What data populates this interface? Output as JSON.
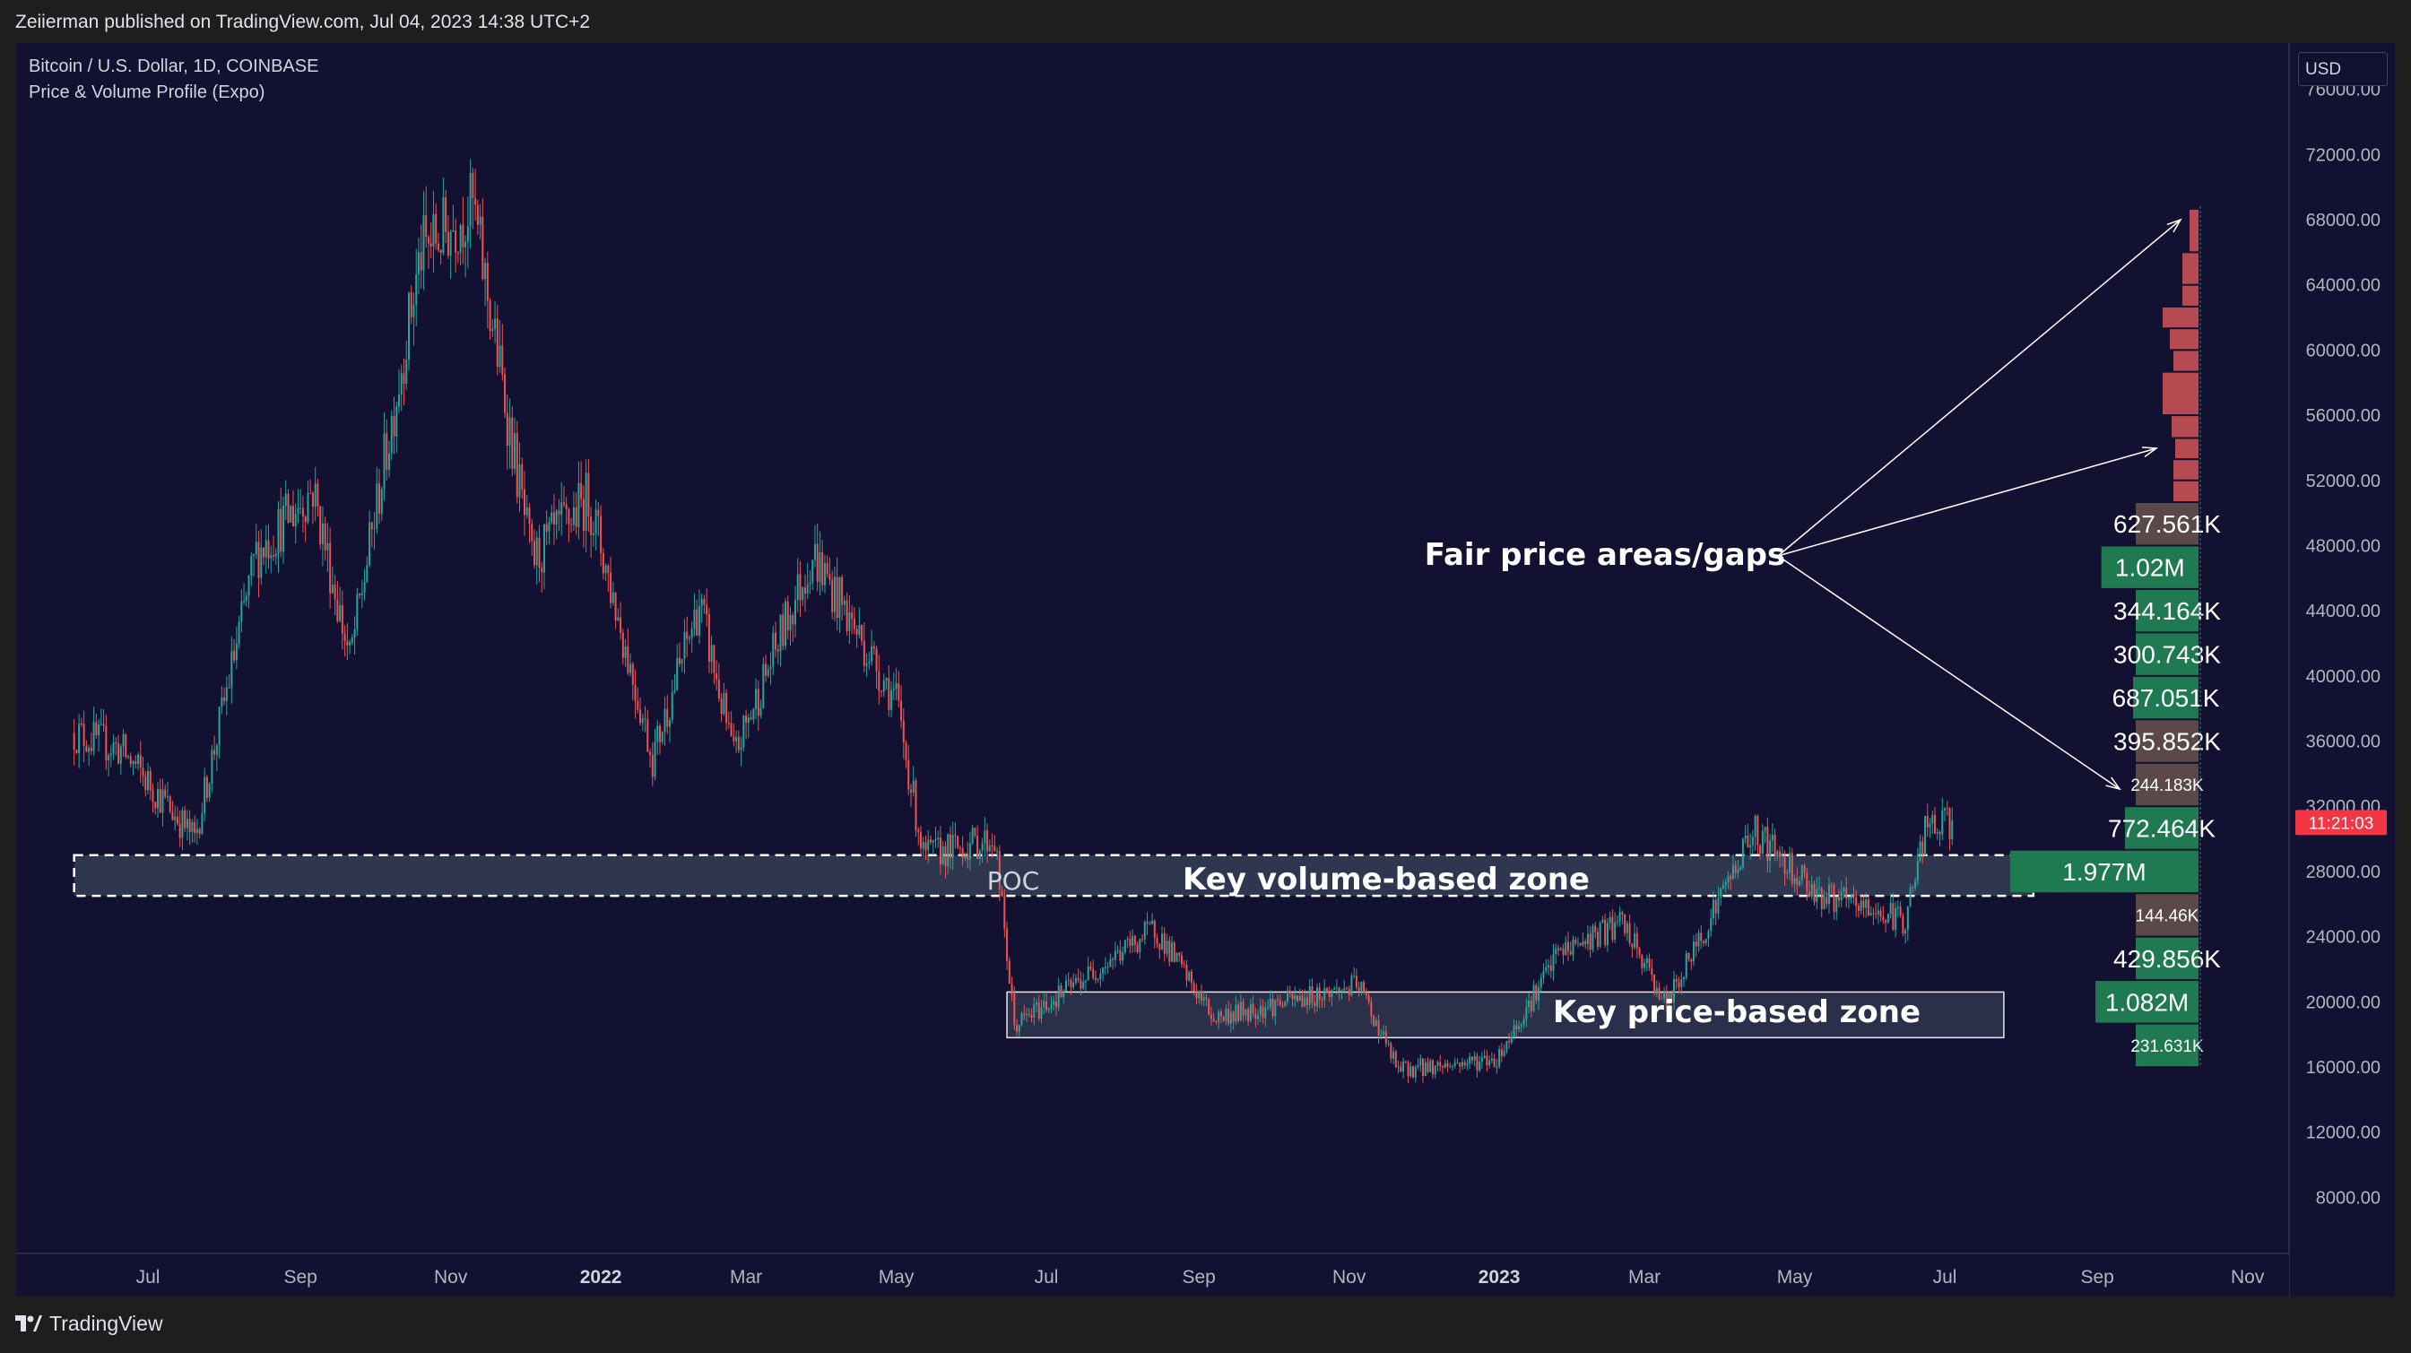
{
  "header": {
    "published_text": "Zeiierman published on TradingView.com, Jul 04, 2023 14:38 UTC+2"
  },
  "legend": {
    "symbol": "Bitcoin / U.S. Dollar, 1D, COINBASE",
    "indicator": "Price & Volume Profile (Expo)"
  },
  "price_scale": {
    "currency": "USD",
    "ticks": [
      "76000.00",
      "72000.00",
      "68000.00",
      "64000.00",
      "60000.00",
      "56000.00",
      "52000.00",
      "48000.00",
      "44000.00",
      "40000.00",
      "36000.00",
      "32000.00",
      "28000.00",
      "24000.00",
      "20000.00",
      "16000.00",
      "12000.00",
      "8000.00"
    ],
    "countdown_label": "11:21:03"
  },
  "time_scale": {
    "ticks": [
      "Jul",
      "Sep",
      "Nov",
      "2022",
      "Mar",
      "May",
      "Jul",
      "Sep",
      "Nov",
      "2023",
      "Mar",
      "May",
      "Jul",
      "Sep",
      "Nov"
    ]
  },
  "annotations": {
    "fair_price": "Fair price areas/gaps",
    "volume_zone": "Key volume-based zone",
    "poc": "POC",
    "price_zone": "Key price-based zone"
  },
  "footer": {
    "brand": "TradingView"
  },
  "colors": {
    "background": "#121131",
    "up_candle": "#26a69a",
    "down_candle": "#ef5350",
    "profile_green": "#1f7a52",
    "profile_gray": "#5b4848",
    "profile_red": "#b54a50",
    "countdown_bg": "#f23645"
  },
  "chart_data": {
    "type": "line",
    "title": "Bitcoin / U.S. Dollar, 1D, COINBASE",
    "ylim": [
      4000,
      78000
    ],
    "x_range": [
      "2021-06-01",
      "2023-11-30"
    ],
    "price_path": [
      {
        "date": "2021-06-01",
        "close": 36500
      },
      {
        "date": "2021-06-20",
        "close": 35500
      },
      {
        "date": "2021-07-20",
        "close": 30000
      },
      {
        "date": "2021-08-14",
        "close": 47500
      },
      {
        "date": "2021-09-06",
        "close": 51500
      },
      {
        "date": "2021-09-21",
        "close": 41000
      },
      {
        "date": "2021-10-20",
        "close": 66000
      },
      {
        "date": "2021-11-10",
        "close": 68800
      },
      {
        "date": "2021-12-04",
        "close": 47000
      },
      {
        "date": "2021-12-27",
        "close": 51000
      },
      {
        "date": "2022-01-22",
        "close": 35000
      },
      {
        "date": "2022-02-10",
        "close": 44500
      },
      {
        "date": "2022-02-24",
        "close": 35000
      },
      {
        "date": "2022-03-28",
        "close": 47500
      },
      {
        "date": "2022-05-01",
        "close": 38500
      },
      {
        "date": "2022-05-12",
        "close": 29000
      },
      {
        "date": "2022-06-10",
        "close": 30000
      },
      {
        "date": "2022-06-18",
        "close": 18500
      },
      {
        "date": "2022-08-14",
        "close": 24500
      },
      {
        "date": "2022-09-07",
        "close": 19000
      },
      {
        "date": "2022-11-05",
        "close": 21000
      },
      {
        "date": "2022-11-21",
        "close": 15800
      },
      {
        "date": "2022-12-31",
        "close": 16500
      },
      {
        "date": "2023-01-25",
        "close": 23000
      },
      {
        "date": "2023-02-20",
        "close": 24800
      },
      {
        "date": "2023-03-10",
        "close": 19800
      },
      {
        "date": "2023-04-14",
        "close": 30500
      },
      {
        "date": "2023-05-12",
        "close": 26500
      },
      {
        "date": "2023-06-15",
        "close": 25000
      },
      {
        "date": "2023-06-23",
        "close": 30500
      },
      {
        "date": "2023-07-04",
        "close": 31000
      }
    ],
    "volume_profile": [
      {
        "price_low": 16000,
        "price_high": 18666,
        "volume_label": "231.631K"
      },
      {
        "price_low": 18666,
        "price_high": 21333,
        "volume_label": "1.082M"
      },
      {
        "price_low": 21333,
        "price_high": 24000,
        "volume_label": "429.856K"
      },
      {
        "price_low": 24000,
        "price_high": 26666,
        "volume_label": "144.46K"
      },
      {
        "price_low": 26666,
        "price_high": 29333,
        "volume_label": "1.977M"
      },
      {
        "price_low": 29333,
        "price_high": 32000,
        "volume_label": "772.464K"
      },
      {
        "price_low": 32000,
        "price_high": 34666,
        "volume_label": "244.183K"
      },
      {
        "price_low": 34666,
        "price_high": 37333,
        "volume_label": "395.852K"
      },
      {
        "price_low": 37333,
        "price_high": 40000,
        "volume_label": "687.051K"
      },
      {
        "price_low": 40000,
        "price_high": 42666,
        "volume_label": "300.743K"
      },
      {
        "price_low": 42666,
        "price_high": 45333,
        "volume_label": "344.164K"
      },
      {
        "price_low": 45333,
        "price_high": 48000,
        "volume_label": "1.02M"
      },
      {
        "price_low": 48000,
        "price_high": 50666,
        "volume_label": "627.561K"
      }
    ],
    "zones": [
      {
        "name": "Key volume-based zone",
        "price_low": 26500,
        "price_high": 29000,
        "start": "2021-06-01",
        "end": "2023-08-06"
      },
      {
        "name": "Key price-based zone",
        "price_low": 17800,
        "price_high": 20600,
        "start": "2022-06-15",
        "end": "2023-07-25"
      }
    ]
  }
}
